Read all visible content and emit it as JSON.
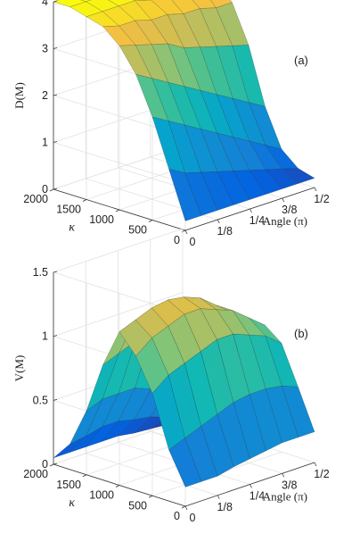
{
  "chart_data": [
    {
      "type": "surface",
      "panel_label": "(a)",
      "zlabel": "D(M)",
      "ylabel": "κ",
      "xlabel": "Angle (π)",
      "x_ticks": [
        "0",
        "1/8",
        "1/4",
        "3/8",
        "1/2"
      ],
      "x_tick_values": [
        0,
        0.125,
        0.25,
        0.375,
        0.5
      ],
      "y_ticks": [
        "0",
        "500",
        "1000",
        "1500",
        "2000"
      ],
      "y_tick_values": [
        0,
        500,
        1000,
        1500,
        2000
      ],
      "z_ticks": [
        "0",
        "1",
        "2",
        "3",
        "4"
      ],
      "z_tick_values": [
        0,
        1,
        2,
        3,
        4
      ],
      "xlim": [
        0,
        0.5
      ],
      "ylim": [
        0,
        2000
      ],
      "zlim": [
        0,
        4
      ],
      "grid": true,
      "colormap": "parula",
      "x": [
        0,
        0.0625,
        0.125,
        0.1875,
        0.25,
        0.3125,
        0.375,
        0.4375,
        0.5
      ],
      "y": [
        0,
        250,
        500,
        750,
        1000,
        1250,
        1500,
        1750,
        2000
      ],
      "z": [
        [
          0.2,
          0.2,
          0.2,
          0.2,
          0.2,
          0.2,
          0.2,
          0.2,
          0.2
        ],
        [
          1.2,
          1.0,
          0.9,
          0.8,
          0.7,
          0.6,
          0.5,
          0.4,
          0.3
        ],
        [
          2.2,
          2.0,
          1.8,
          1.6,
          1.4,
          1.2,
          1.0,
          0.8,
          0.6
        ],
        [
          3.0,
          2.8,
          2.6,
          2.4,
          2.2,
          2.0,
          1.8,
          1.6,
          1.4
        ],
        [
          3.5,
          3.4,
          3.3,
          3.2,
          3.0,
          2.9,
          2.8,
          2.7,
          2.6
        ],
        [
          3.8,
          3.7,
          3.7,
          3.6,
          3.6,
          3.5,
          3.5,
          3.4,
          3.4
        ],
        [
          3.9,
          3.9,
          3.9,
          3.9,
          3.8,
          3.8,
          3.8,
          3.8,
          3.8
        ],
        [
          4.0,
          4.0,
          4.0,
          4.0,
          4.0,
          4.0,
          3.9,
          3.9,
          3.9
        ],
        [
          4.0,
          4.0,
          4.0,
          4.0,
          4.0,
          4.0,
          4.0,
          4.0,
          4.0
        ]
      ]
    },
    {
      "type": "surface",
      "panel_label": "(b)",
      "zlabel": "V(M)",
      "ylabel": "κ",
      "xlabel": "Angle (π)",
      "x_ticks": [
        "0",
        "1/8",
        "1/4",
        "3/8",
        "1/2"
      ],
      "x_tick_values": [
        0,
        0.125,
        0.25,
        0.375,
        0.5
      ],
      "y_ticks": [
        "0",
        "500",
        "1000",
        "1500",
        "2000"
      ],
      "y_tick_values": [
        0,
        500,
        1000,
        1500,
        2000
      ],
      "z_ticks": [
        "0",
        "0.5",
        "1",
        "1.5"
      ],
      "z_tick_values": [
        0,
        0.5,
        1,
        1.5
      ],
      "xlim": [
        0,
        0.5
      ],
      "ylim": [
        0,
        2000
      ],
      "zlim": [
        0,
        1.5
      ],
      "grid": true,
      "colormap": "parula",
      "x": [
        0,
        0.0625,
        0.125,
        0.1875,
        0.25,
        0.3125,
        0.375,
        0.4375,
        0.5
      ],
      "y": [
        0,
        250,
        500,
        750,
        1000,
        1250,
        1500,
        1750,
        2000
      ],
      "z": [
        [
          0.15,
          0.15,
          0.15,
          0.18,
          0.2,
          0.22,
          0.24,
          0.24,
          0.24
        ],
        [
          0.4,
          0.45,
          0.5,
          0.55,
          0.6,
          0.62,
          0.62,
          0.6,
          0.55
        ],
        [
          0.8,
          0.9,
          0.95,
          1.0,
          1.05,
          1.05,
          1.0,
          0.95,
          0.85
        ],
        [
          1.05,
          1.15,
          1.2,
          1.25,
          1.25,
          1.2,
          1.15,
          1.05,
          0.95
        ],
        [
          1.2,
          1.25,
          1.3,
          1.32,
          1.3,
          1.25,
          1.15,
          1.05,
          0.9
        ],
        [
          0.9,
          0.95,
          1.0,
          1.0,
          0.95,
          0.9,
          0.8,
          0.7,
          0.55
        ],
        [
          0.5,
          0.55,
          0.55,
          0.55,
          0.5,
          0.45,
          0.4,
          0.3,
          0.2
        ],
        [
          0.2,
          0.22,
          0.25,
          0.25,
          0.22,
          0.2,
          0.15,
          0.1,
          0.05
        ],
        [
          0.05,
          0.05,
          0.05,
          0.05,
          0.05,
          0.03,
          0.02,
          0.01,
          0.0
        ]
      ]
    }
  ]
}
